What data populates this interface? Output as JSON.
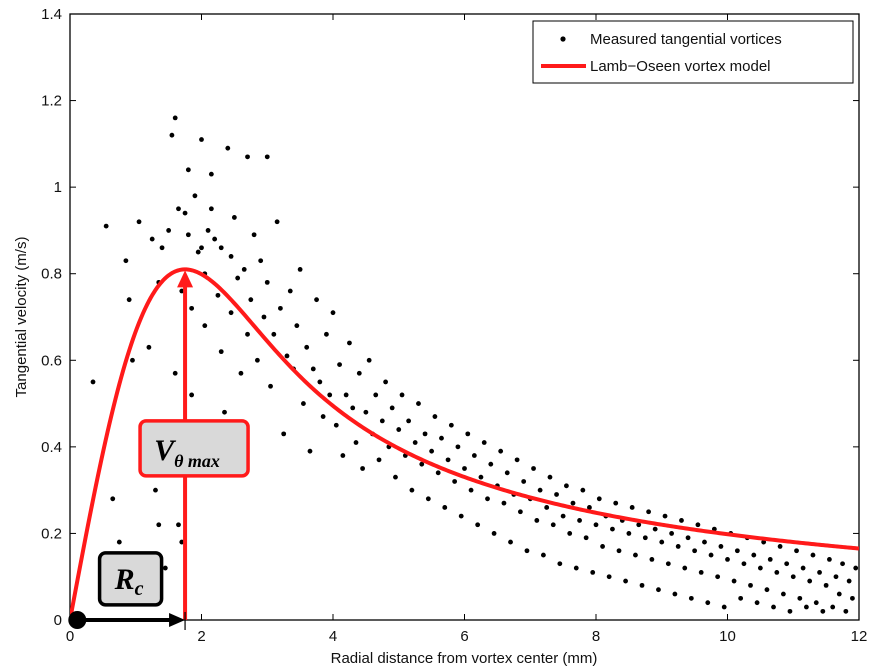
{
  "chart_data": {
    "type": "scatter",
    "xlabel": "Radial distance from vortex center (mm)",
    "ylabel": "Tangential velocity (m/s)",
    "xlim": [
      0,
      12
    ],
    "ylim": [
      0,
      1.4
    ],
    "xticks": [
      "0",
      "2",
      "4",
      "6",
      "8",
      "10",
      "12"
    ],
    "yticks": [
      "0",
      "0.2",
      "0.4",
      "0.6",
      "0.8",
      "1",
      "1.2",
      "1.4"
    ],
    "grid": false,
    "legend_position": "top-right",
    "series": [
      {
        "name": "Measured tangential vortices",
        "kind": "scatter",
        "color": "#000000",
        "points": [
          [
            0.35,
            0.55
          ],
          [
            0.55,
            0.91
          ],
          [
            0.65,
            0.28
          ],
          [
            0.75,
            0.18
          ],
          [
            0.85,
            0.83
          ],
          [
            0.9,
            0.74
          ],
          [
            0.95,
            0.6
          ],
          [
            0.9,
            0.13
          ],
          [
            1.05,
            0.92
          ],
          [
            1.1,
            0.45
          ],
          [
            1.15,
            0.08
          ],
          [
            1.2,
            0.63
          ],
          [
            1.25,
            0.88
          ],
          [
            1.3,
            0.3
          ],
          [
            1.35,
            0.22
          ],
          [
            1.35,
            0.78
          ],
          [
            1.4,
            0.86
          ],
          [
            1.45,
            0.12
          ],
          [
            1.5,
            0.9
          ],
          [
            1.55,
            1.12
          ],
          [
            1.6,
            1.16
          ],
          [
            1.6,
            0.57
          ],
          [
            1.65,
            0.95
          ],
          [
            1.65,
            0.22
          ],
          [
            1.7,
            0.18
          ],
          [
            1.7,
            0.76
          ],
          [
            1.75,
            0.94
          ],
          [
            1.8,
            1.04
          ],
          [
            1.8,
            0.89
          ],
          [
            1.85,
            0.72
          ],
          [
            1.85,
            0.52
          ],
          [
            1.9,
            0.98
          ],
          [
            1.95,
            0.85
          ],
          [
            2.0,
            1.11
          ],
          [
            2.0,
            0.86
          ],
          [
            2.05,
            0.8
          ],
          [
            2.05,
            0.68
          ],
          [
            2.1,
            0.9
          ],
          [
            2.15,
            1.03
          ],
          [
            2.15,
            0.95
          ],
          [
            2.2,
            0.88
          ],
          [
            2.25,
            0.75
          ],
          [
            2.3,
            0.62
          ],
          [
            2.35,
            0.48
          ],
          [
            2.3,
            0.86
          ],
          [
            2.4,
            1.09
          ],
          [
            2.45,
            0.84
          ],
          [
            2.45,
            0.71
          ],
          [
            2.5,
            0.93
          ],
          [
            2.55,
            0.79
          ],
          [
            2.6,
            0.57
          ],
          [
            2.65,
            0.81
          ],
          [
            2.7,
            1.07
          ],
          [
            2.7,
            0.66
          ],
          [
            2.75,
            0.74
          ],
          [
            2.8,
            0.89
          ],
          [
            2.85,
            0.6
          ],
          [
            2.9,
            0.83
          ],
          [
            2.95,
            0.7
          ],
          [
            3.0,
            1.07
          ],
          [
            3.0,
            0.78
          ],
          [
            3.05,
            0.54
          ],
          [
            3.1,
            0.66
          ],
          [
            3.15,
            0.92
          ],
          [
            3.2,
            0.72
          ],
          [
            3.25,
            0.43
          ],
          [
            3.3,
            0.61
          ],
          [
            3.35,
            0.76
          ],
          [
            3.4,
            0.58
          ],
          [
            3.45,
            0.68
          ],
          [
            3.5,
            0.81
          ],
          [
            3.55,
            0.5
          ],
          [
            3.6,
            0.63
          ],
          [
            3.65,
            0.39
          ],
          [
            3.7,
            0.58
          ],
          [
            3.75,
            0.74
          ],
          [
            3.8,
            0.55
          ],
          [
            3.85,
            0.47
          ],
          [
            3.9,
            0.66
          ],
          [
            3.95,
            0.52
          ],
          [
            4.0,
            0.71
          ],
          [
            4.05,
            0.45
          ],
          [
            4.1,
            0.59
          ],
          [
            4.15,
            0.38
          ],
          [
            4.2,
            0.52
          ],
          [
            4.25,
            0.64
          ],
          [
            4.3,
            0.49
          ],
          [
            4.35,
            0.41
          ],
          [
            4.4,
            0.57
          ],
          [
            4.45,
            0.35
          ],
          [
            4.5,
            0.48
          ],
          [
            4.55,
            0.6
          ],
          [
            4.6,
            0.43
          ],
          [
            4.65,
            0.52
          ],
          [
            4.7,
            0.37
          ],
          [
            4.75,
            0.46
          ],
          [
            4.8,
            0.55
          ],
          [
            4.85,
            0.4
          ],
          [
            4.9,
            0.49
          ],
          [
            4.95,
            0.33
          ],
          [
            5.0,
            0.44
          ],
          [
            5.05,
            0.52
          ],
          [
            5.1,
            0.38
          ],
          [
            5.15,
            0.46
          ],
          [
            5.2,
            0.3
          ],
          [
            5.25,
            0.41
          ],
          [
            5.3,
            0.5
          ],
          [
            5.35,
            0.36
          ],
          [
            5.4,
            0.43
          ],
          [
            5.45,
            0.28
          ],
          [
            5.5,
            0.39
          ],
          [
            5.55,
            0.47
          ],
          [
            5.6,
            0.34
          ],
          [
            5.65,
            0.42
          ],
          [
            5.7,
            0.26
          ],
          [
            5.75,
            0.37
          ],
          [
            5.8,
            0.45
          ],
          [
            5.85,
            0.32
          ],
          [
            5.9,
            0.4
          ],
          [
            5.95,
            0.24
          ],
          [
            6.0,
            0.35
          ],
          [
            6.05,
            0.43
          ],
          [
            6.1,
            0.3
          ],
          [
            6.15,
            0.38
          ],
          [
            6.2,
            0.22
          ],
          [
            6.25,
            0.33
          ],
          [
            6.3,
            0.41
          ],
          [
            6.35,
            0.28
          ],
          [
            6.4,
            0.36
          ],
          [
            6.45,
            0.2
          ],
          [
            6.5,
            0.31
          ],
          [
            6.55,
            0.39
          ],
          [
            6.6,
            0.27
          ],
          [
            6.65,
            0.34
          ],
          [
            6.7,
            0.18
          ],
          [
            6.75,
            0.29
          ],
          [
            6.8,
            0.37
          ],
          [
            6.85,
            0.25
          ],
          [
            6.9,
            0.32
          ],
          [
            6.95,
            0.16
          ],
          [
            7.0,
            0.28
          ],
          [
            7.05,
            0.35
          ],
          [
            7.1,
            0.23
          ],
          [
            7.15,
            0.3
          ],
          [
            7.2,
            0.15
          ],
          [
            7.25,
            0.26
          ],
          [
            7.3,
            0.33
          ],
          [
            7.35,
            0.22
          ],
          [
            7.4,
            0.29
          ],
          [
            7.45,
            0.13
          ],
          [
            7.5,
            0.24
          ],
          [
            7.55,
            0.31
          ],
          [
            7.6,
            0.2
          ],
          [
            7.65,
            0.27
          ],
          [
            7.7,
            0.12
          ],
          [
            7.75,
            0.23
          ],
          [
            7.8,
            0.3
          ],
          [
            7.85,
            0.19
          ],
          [
            7.9,
            0.26
          ],
          [
            7.95,
            0.11
          ],
          [
            8.0,
            0.22
          ],
          [
            8.05,
            0.28
          ],
          [
            8.1,
            0.17
          ],
          [
            8.15,
            0.24
          ],
          [
            8.2,
            0.1
          ],
          [
            8.25,
            0.21
          ],
          [
            8.3,
            0.27
          ],
          [
            8.35,
            0.16
          ],
          [
            8.4,
            0.23
          ],
          [
            8.45,
            0.09
          ],
          [
            8.5,
            0.2
          ],
          [
            8.55,
            0.26
          ],
          [
            8.6,
            0.15
          ],
          [
            8.65,
            0.22
          ],
          [
            8.7,
            0.08
          ],
          [
            8.75,
            0.19
          ],
          [
            8.8,
            0.25
          ],
          [
            8.85,
            0.14
          ],
          [
            8.9,
            0.21
          ],
          [
            8.95,
            0.07
          ],
          [
            9.0,
            0.18
          ],
          [
            9.05,
            0.24
          ],
          [
            9.1,
            0.13
          ],
          [
            9.15,
            0.2
          ],
          [
            9.2,
            0.06
          ],
          [
            9.25,
            0.17
          ],
          [
            9.3,
            0.23
          ],
          [
            9.35,
            0.12
          ],
          [
            9.4,
            0.19
          ],
          [
            9.45,
            0.05
          ],
          [
            9.5,
            0.16
          ],
          [
            9.55,
            0.22
          ],
          [
            9.6,
            0.11
          ],
          [
            9.65,
            0.18
          ],
          [
            9.7,
            0.04
          ],
          [
            9.75,
            0.15
          ],
          [
            9.8,
            0.21
          ],
          [
            9.85,
            0.1
          ],
          [
            9.9,
            0.17
          ],
          [
            9.95,
            0.03
          ],
          [
            10.0,
            0.14
          ],
          [
            10.05,
            0.2
          ],
          [
            10.1,
            0.09
          ],
          [
            10.15,
            0.16
          ],
          [
            10.2,
            0.05
          ],
          [
            10.25,
            0.13
          ],
          [
            10.3,
            0.19
          ],
          [
            10.35,
            0.08
          ],
          [
            10.4,
            0.15
          ],
          [
            10.45,
            0.04
          ],
          [
            10.5,
            0.12
          ],
          [
            10.55,
            0.18
          ],
          [
            10.6,
            0.07
          ],
          [
            10.65,
            0.14
          ],
          [
            10.7,
            0.03
          ],
          [
            10.75,
            0.11
          ],
          [
            10.8,
            0.17
          ],
          [
            10.85,
            0.06
          ],
          [
            10.9,
            0.13
          ],
          [
            10.95,
            0.02
          ],
          [
            11.0,
            0.1
          ],
          [
            11.05,
            0.16
          ],
          [
            11.1,
            0.05
          ],
          [
            11.15,
            0.12
          ],
          [
            11.2,
            0.03
          ],
          [
            11.25,
            0.09
          ],
          [
            11.3,
            0.15
          ],
          [
            11.35,
            0.04
          ],
          [
            11.4,
            0.11
          ],
          [
            11.45,
            0.02
          ],
          [
            11.5,
            0.08
          ],
          [
            11.55,
            0.14
          ],
          [
            11.6,
            0.03
          ],
          [
            11.65,
            0.1
          ],
          [
            11.7,
            0.06
          ],
          [
            11.75,
            0.13
          ],
          [
            11.8,
            0.02
          ],
          [
            11.85,
            0.09
          ],
          [
            11.9,
            0.05
          ],
          [
            11.95,
            0.12
          ]
        ]
      },
      {
        "name": "Lamb−Oseen vortex model",
        "kind": "line",
        "color": "#ff1a1a",
        "peak_x": 1.75,
        "peak_y": 0.81
      }
    ],
    "annotations": {
      "rc_main": "R",
      "rc_sub": "c",
      "vmax_main": "V",
      "vmax_sub": "θ max",
      "label_box_fill": "#d9d9d9",
      "arrow_color": "#ff1a1a",
      "rc_arrow_color": "#000000"
    }
  }
}
